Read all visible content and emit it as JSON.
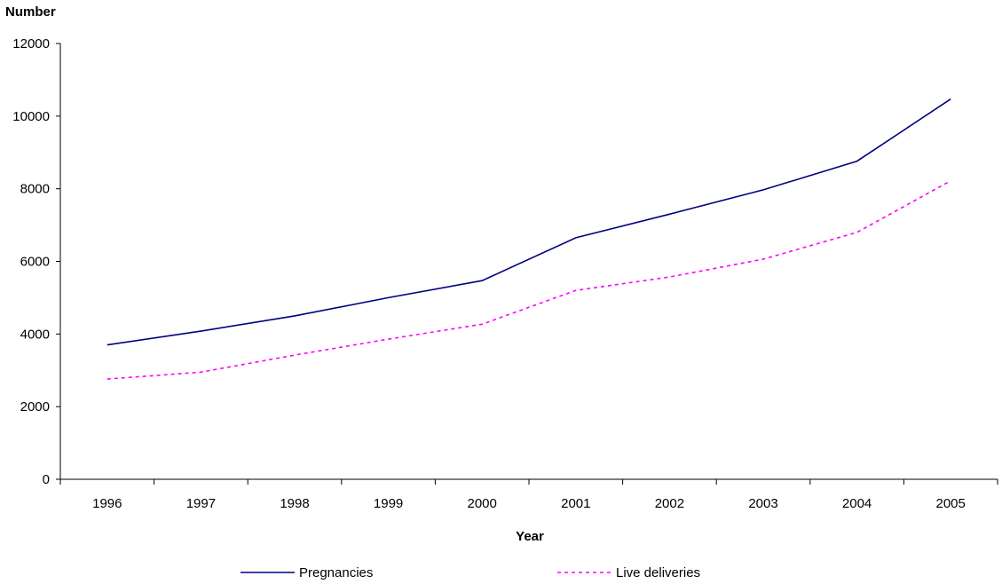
{
  "chart_data": {
    "type": "line",
    "title": "",
    "xlabel": "Year",
    "ylabel": "Number",
    "categories": [
      "1996",
      "1997",
      "1998",
      "1999",
      "2000",
      "2001",
      "2002",
      "2003",
      "2004",
      "2005"
    ],
    "series": [
      {
        "name": "Pregnancies",
        "color": "#000080",
        "dash": "solid",
        "values": [
          3700,
          4080,
          4500,
          5000,
          5470,
          6650,
          7300,
          7970,
          8760,
          10470
        ]
      },
      {
        "name": "Live deliveries",
        "color": "#ff00ff",
        "dash": "dashed",
        "values": [
          2760,
          2950,
          3420,
          3860,
          4270,
          5200,
          5570,
          6060,
          6800,
          8220
        ]
      }
    ],
    "ylim": [
      0,
      12000
    ],
    "yticks": [
      "0",
      "2000",
      "4000",
      "6000",
      "8000",
      "10000",
      "12000"
    ],
    "grid": false,
    "legend_position": "bottom"
  }
}
